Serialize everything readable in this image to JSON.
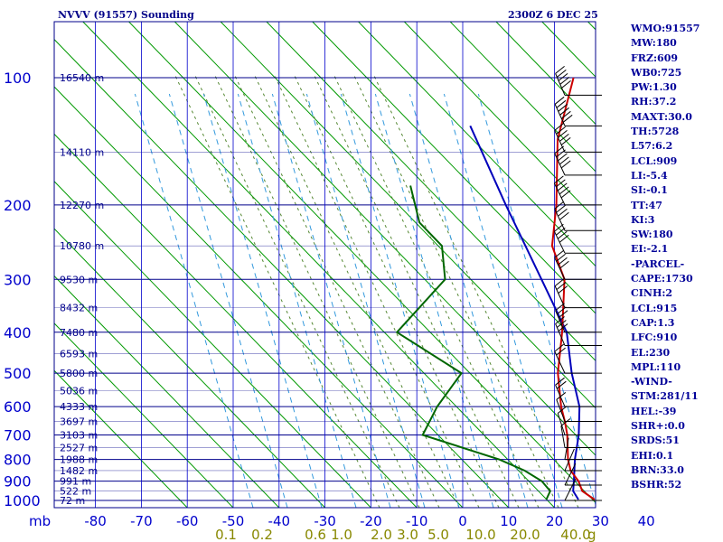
{
  "title_left": "NVVV (91557) Sounding",
  "title_right": "2300Z  6 DEC 25",
  "indices": [
    "WMO:91557",
    "MW:180",
    "FRZ:609",
    "WB0:725",
    "PW:1.30",
    "RH:37.2",
    "MAXT:30.0",
    "TH:5728",
    "L57:6.2",
    "LCL:909",
    "LI:-5.4",
    "SI:-0.1",
    "TT:47",
    "KI:3",
    "SW:180",
    "EI:-2.1",
    "-PARCEL-",
    "CAPE:1730",
    "CINH:2",
    "LCL:915",
    "CAP:1.3",
    "LFC:910",
    "EL:230",
    "MPL:110",
    "-WIND-",
    "STM:281/11",
    "HEL:-39",
    "SHR+:0.0",
    "SRDS:51",
    "EHI:0.1",
    "BRN:33.0",
    "BSHR:52"
  ],
  "chart_data": {
    "type": "skew-t",
    "title": "NVVV (91557) Sounding",
    "x_axis_unit": "mb",
    "pressure_levels": [
      100,
      200,
      300,
      400,
      500,
      600,
      700,
      800,
      900,
      1000
    ],
    "temperature_ticks": [
      -80,
      -70,
      -60,
      -50,
      -40,
      -30,
      -20,
      -10,
      0,
      10,
      20,
      30,
      40
    ],
    "mixing_ratio_labels": [
      "0.1",
      "0.2",
      "0.6",
      "1.0",
      "2.0",
      "3.0",
      "5.0",
      "10.0",
      "20.0",
      "40.0"
    ],
    "mixing_ratio_unit": "g",
    "heights": [
      {
        "p": 100,
        "label": "16540 m"
      },
      {
        "p": 150,
        "label": "14110 m"
      },
      {
        "p": 200,
        "label": "12270 m"
      },
      {
        "p": 250,
        "label": "10780 m"
      },
      {
        "p": 300,
        "label": "9530 m"
      },
      {
        "p": 350,
        "label": "8432 m"
      },
      {
        "p": 400,
        "label": "7480 m"
      },
      {
        "p": 450,
        "label": "6593 m"
      },
      {
        "p": 500,
        "label": "5800 m"
      },
      {
        "p": 550,
        "label": "5036 m"
      },
      {
        "p": 600,
        "label": "4333 m"
      },
      {
        "p": 650,
        "label": "3697 m"
      },
      {
        "p": 700,
        "label": "3103 m"
      },
      {
        "p": 750,
        "label": "2527 m"
      },
      {
        "p": 800,
        "label": "1988 m"
      },
      {
        "p": 850,
        "label": "1482 m"
      },
      {
        "p": 900,
        "label": "991 m"
      },
      {
        "p": 950,
        "label": "522 m"
      },
      {
        "p": 1000,
        "label": "72 m"
      }
    ],
    "temperature_profile": [
      [
        100,
        -68
      ],
      [
        140,
        -58
      ],
      [
        200,
        -44
      ],
      [
        250,
        -36
      ],
      [
        300,
        -26
      ],
      [
        400,
        -15
      ],
      [
        500,
        -7
      ],
      [
        600,
        1
      ],
      [
        650,
        5
      ],
      [
        700,
        8.5
      ],
      [
        800,
        14
      ],
      [
        850,
        17
      ],
      [
        900,
        21
      ],
      [
        950,
        24
      ],
      [
        995,
        28.5
      ]
    ],
    "dewpoint_profile": [
      [
        180,
        -80
      ],
      [
        220,
        -70
      ],
      [
        250,
        -60
      ],
      [
        300,
        -52
      ],
      [
        400,
        -51
      ],
      [
        500,
        -28
      ],
      [
        600,
        -26
      ],
      [
        700,
        -23
      ],
      [
        800,
        -1
      ],
      [
        850,
        7
      ],
      [
        900,
        13
      ],
      [
        950,
        17
      ],
      [
        995,
        18
      ]
    ],
    "parcel_profile": [
      [
        130,
        -80
      ],
      [
        200,
        -55
      ],
      [
        300,
        -31
      ],
      [
        400,
        -14
      ],
      [
        500,
        -4
      ],
      [
        600,
        5
      ],
      [
        700,
        11
      ],
      [
        800,
        15.5
      ],
      [
        900,
        20
      ],
      [
        950,
        22
      ],
      [
        995,
        25
      ]
    ],
    "wind_barbs": [
      {
        "p": 110,
        "dir": 240,
        "spd": 55
      },
      {
        "p": 130,
        "dir": 245,
        "spd": 60
      },
      {
        "p": 150,
        "dir": 250,
        "spd": 55
      },
      {
        "p": 170,
        "dir": 250,
        "spd": 50
      },
      {
        "p": 200,
        "dir": 255,
        "spd": 50
      },
      {
        "p": 230,
        "dir": 250,
        "spd": 45
      },
      {
        "p": 260,
        "dir": 255,
        "spd": 45
      },
      {
        "p": 300,
        "dir": 250,
        "spd": 40
      },
      {
        "p": 350,
        "dir": 245,
        "spd": 35
      },
      {
        "p": 400,
        "dir": 240,
        "spd": 30
      },
      {
        "p": 430,
        "dir": 240,
        "spd": 30
      },
      {
        "p": 500,
        "dir": 250,
        "spd": 25
      },
      {
        "p": 600,
        "dir": 240,
        "spd": 20
      },
      {
        "p": 650,
        "dir": 230,
        "spd": 15
      },
      {
        "p": 700,
        "dir": 220,
        "spd": 15
      },
      {
        "p": 750,
        "dir": 200,
        "spd": 10
      },
      {
        "p": 800,
        "dir": 160,
        "spd": 5
      },
      {
        "p": 850,
        "dir": 120,
        "spd": 5
      },
      {
        "p": 920,
        "dir": 100,
        "spd": 5
      },
      {
        "p": 1000,
        "dir": 90,
        "spd": 5
      }
    ],
    "colors": {
      "temperature": "#cc0000",
      "dewpoint": "#006600",
      "parcel": "#0000bb",
      "isobar": "#00008b",
      "isotherm_axis": "#0000cc",
      "dry_adiabat": "#009900",
      "moist_adiabat": "#558833",
      "mixing_ratio": "#3399dd",
      "mixing_label": "#888800",
      "axis_text": "#0000cc",
      "wind": "#000000"
    }
  }
}
